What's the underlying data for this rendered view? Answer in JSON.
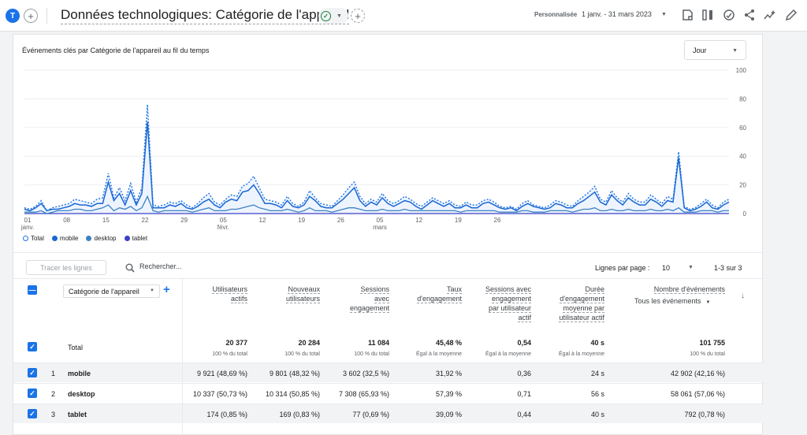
{
  "header": {
    "avatar_letter": "T",
    "title": "Données technologiques: Catégorie de l'appareil",
    "custom_label": "Personnalisée",
    "date_range": "1 janv. - 31 mars 2023",
    "icons": [
      "compare-icon",
      "share-icon",
      "insights-icon",
      "edit-icon"
    ]
  },
  "chart": {
    "title": "Événements clés par Catégorie de l'appareil au fil du temps",
    "granularity": "Jour",
    "legend": [
      {
        "name": "Total",
        "color": "#1a73e8"
      },
      {
        "name": "mobile",
        "color": "#1967d2"
      },
      {
        "name": "desktop",
        "color": "#3b82c4"
      },
      {
        "name": "tablet",
        "color": "#3c40c6"
      }
    ]
  },
  "chart_data": {
    "type": "line",
    "x_tick_labels": [
      {
        "label": "01",
        "sub": "janv."
      },
      {
        "label": "08",
        "sub": ""
      },
      {
        "label": "15",
        "sub": ""
      },
      {
        "label": "22",
        "sub": ""
      },
      {
        "label": "29",
        "sub": ""
      },
      {
        "label": "05",
        "sub": "févr."
      },
      {
        "label": "12",
        "sub": ""
      },
      {
        "label": "19",
        "sub": ""
      },
      {
        "label": "26",
        "sub": ""
      },
      {
        "label": "05",
        "sub": "mars"
      },
      {
        "label": "12",
        "sub": ""
      },
      {
        "label": "19",
        "sub": ""
      },
      {
        "label": "26",
        "sub": ""
      }
    ],
    "y_ticks": [
      0,
      20,
      40,
      60,
      80,
      100
    ],
    "ylim": [
      0,
      100
    ],
    "series": [
      {
        "name": "Total",
        "values": [
          4,
          3,
          5,
          9,
          2,
          4,
          5,
          6,
          7,
          10,
          9,
          8,
          7,
          10,
          11,
          28,
          11,
          18,
          9,
          21,
          8,
          18,
          76,
          6,
          5,
          6,
          8,
          7,
          9,
          6,
          4,
          7,
          11,
          14,
          8,
          6,
          10,
          13,
          12,
          19,
          21,
          26,
          18,
          10,
          9,
          8,
          6,
          12,
          7,
          5,
          8,
          16,
          11,
          7,
          6,
          5,
          9,
          13,
          18,
          22,
          12,
          7,
          10,
          8,
          14,
          9,
          7,
          9,
          12,
          10,
          7,
          5,
          8,
          11,
          9,
          7,
          9,
          6,
          5,
          8,
          6,
          6,
          9,
          10,
          8,
          5,
          4,
          5,
          3,
          7,
          9,
          6,
          5,
          4,
          6,
          9,
          8,
          6,
          5,
          9,
          12,
          15,
          19,
          10,
          8,
          16,
          11,
          8,
          14,
          10,
          8,
          8,
          13,
          10,
          7,
          12,
          10,
          43,
          5,
          3,
          4,
          7,
          10,
          6,
          4,
          8,
          10
        ],
        "color": "#1a73e8"
      },
      {
        "name": "mobile",
        "values": [
          3,
          2,
          4,
          7,
          2,
          3,
          3,
          4,
          5,
          7,
          6,
          6,
          5,
          7,
          7,
          22,
          9,
          14,
          6,
          16,
          6,
          14,
          64,
          4,
          4,
          4,
          6,
          5,
          7,
          4,
          3,
          5,
          8,
          10,
          6,
          4,
          8,
          10,
          9,
          15,
          16,
          20,
          14,
          7,
          7,
          6,
          4,
          9,
          5,
          4,
          6,
          12,
          9,
          5,
          4,
          4,
          7,
          10,
          14,
          18,
          9,
          5,
          8,
          6,
          11,
          7,
          5,
          7,
          9,
          8,
          5,
          3,
          6,
          9,
          7,
          5,
          7,
          4,
          4,
          6,
          4,
          4,
          7,
          8,
          6,
          4,
          3,
          4,
          2,
          5,
          7,
          5,
          4,
          3,
          4,
          7,
          6,
          4,
          4,
          7,
          9,
          12,
          15,
          8,
          6,
          13,
          9,
          6,
          11,
          8,
          6,
          6,
          10,
          8,
          5,
          9,
          8,
          39,
          4,
          2,
          3,
          5,
          8,
          4,
          3,
          6,
          8
        ],
        "color": "#1967d2"
      },
      {
        "name": "desktop",
        "values": [
          1,
          1,
          1,
          2,
          0,
          1,
          2,
          2,
          2,
          3,
          3,
          2,
          2,
          3,
          4,
          6,
          2,
          4,
          3,
          5,
          2,
          4,
          12,
          2,
          1,
          2,
          2,
          2,
          2,
          2,
          1,
          2,
          3,
          4,
          2,
          2,
          2,
          3,
          3,
          4,
          5,
          6,
          4,
          3,
          2,
          2,
          2,
          3,
          2,
          1,
          2,
          4,
          2,
          2,
          2,
          1,
          2,
          3,
          4,
          4,
          3,
          2,
          2,
          2,
          3,
          2,
          2,
          2,
          3,
          2,
          2,
          2,
          2,
          2,
          2,
          2,
          2,
          2,
          1,
          2,
          2,
          2,
          2,
          2,
          2,
          1,
          1,
          1,
          1,
          2,
          2,
          1,
          1,
          1,
          2,
          2,
          2,
          2,
          1,
          2,
          3,
          3,
          4,
          2,
          2,
          3,
          2,
          2,
          3,
          2,
          2,
          2,
          3,
          2,
          2,
          3,
          2,
          4,
          1,
          1,
          1,
          2,
          2,
          2,
          1,
          2,
          2
        ],
        "color": "#3b82c4"
      },
      {
        "name": "tablet",
        "values": [
          0,
          0,
          0,
          0,
          0,
          0,
          0,
          0,
          0,
          0,
          0,
          0,
          0,
          0,
          0,
          0,
          0,
          0,
          0,
          0,
          0,
          0,
          0,
          0,
          0,
          0,
          0,
          0,
          0,
          0,
          0,
          0,
          0,
          0,
          0,
          0,
          0,
          0,
          0,
          0,
          0,
          0,
          0,
          0,
          0,
          0,
          0,
          0,
          0,
          0,
          0,
          0,
          0,
          0,
          0,
          0,
          0,
          0,
          0,
          0,
          0,
          0,
          0,
          0,
          0,
          0,
          0,
          0,
          0,
          0,
          0,
          0,
          0,
          0,
          0,
          0,
          0,
          0,
          0,
          0,
          0,
          0,
          0,
          0,
          0,
          0,
          0,
          0,
          0,
          0,
          0,
          0,
          0,
          0,
          0,
          0,
          0,
          0,
          0,
          0,
          0,
          0,
          0,
          0,
          0,
          0,
          0,
          0,
          0,
          0,
          0,
          0,
          0,
          0,
          0,
          0,
          0,
          0,
          0,
          0,
          0,
          0,
          0,
          0,
          0,
          0,
          0
        ],
        "color": "#3c40c6"
      }
    ],
    "grid": true,
    "legend_position": "bottom-left"
  },
  "toolbar": {
    "plot_rows": "Tracer les lignes",
    "search_placeholder": "Rechercher...",
    "rows_per_page_label": "Lignes par page :",
    "rows_per_page_value": "10",
    "pagination": "1-3 sur 3"
  },
  "table": {
    "dimension": "Catégorie de l'appareil",
    "event_filter": "Tous les événements",
    "columns": [
      {
        "l1": "Utilisateurs",
        "l2": "actifs",
        "l3": "",
        "l4": ""
      },
      {
        "l1": "Nouveaux",
        "l2": "utilisateurs",
        "l3": "",
        "l4": ""
      },
      {
        "l1": "Sessions",
        "l2": "avec",
        "l3": "engagement",
        "l4": ""
      },
      {
        "l1": "Taux",
        "l2": "d'engagement",
        "l3": "",
        "l4": ""
      },
      {
        "l1": "Sessions avec",
        "l2": "engagement",
        "l3": "par utilisateur",
        "l4": "actif"
      },
      {
        "l1": "Durée",
        "l2": "d'engagement",
        "l3": "moyenne par",
        "l4": "utilisateur actif"
      },
      {
        "l1": "Nombre d'événements",
        "l2": "",
        "l3": "",
        "l4": ""
      }
    ],
    "total": {
      "label": "Total",
      "values": [
        "20 377",
        "20 284",
        "11 084",
        "45,48 %",
        "0,54",
        "40 s",
        "101 755"
      ],
      "subs": [
        "100 % du total",
        "100 % du total",
        "100 % du total",
        "Égal à la moyenne",
        "Égal à la moyenne",
        "Égal à la moyenne",
        "100 % du total"
      ]
    },
    "rows": [
      {
        "num": "1",
        "label": "mobile",
        "values": [
          "9 921 (48,69 %)",
          "9 801 (48,32 %)",
          "3 602 (32,5 %)",
          "31,92 %",
          "0,36",
          "24 s",
          "42 902 (42,16 %)"
        ]
      },
      {
        "num": "2",
        "label": "desktop",
        "values": [
          "10 337 (50,73 %)",
          "10 314 (50,85 %)",
          "7 308 (65,93 %)",
          "57,39 %",
          "0,71",
          "56 s",
          "58 061 (57,06 %)"
        ]
      },
      {
        "num": "3",
        "label": "tablet",
        "values": [
          "174 (0,85 %)",
          "169 (0,83 %)",
          "77 (0,69 %)",
          "39,09 %",
          "0,44",
          "40 s",
          "792 (0,78 %)"
        ]
      }
    ]
  }
}
